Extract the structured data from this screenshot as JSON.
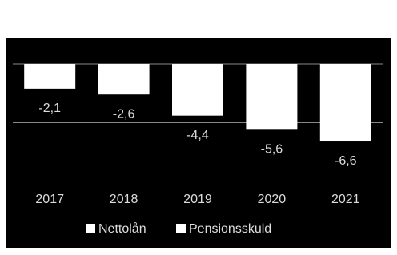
{
  "chart_data": {
    "type": "bar",
    "categories": [
      "2017",
      "2018",
      "2019",
      "2020",
      "2021"
    ],
    "series": [
      {
        "name": "Nettolån",
        "color": "#ffffff",
        "values": [
          -2.1,
          -2.6,
          -4.4,
          -5.6,
          -6.6
        ],
        "value_labels": [
          "-2,1",
          "-2,6",
          "-4,4",
          "-5,6",
          "-6,6"
        ]
      },
      {
        "name": "Pensionsskuld",
        "color": "#ffffff",
        "values": [
          null,
          null,
          null,
          null,
          null
        ]
      }
    ],
    "ylim": [
      -10,
      0
    ],
    "yticks": [
      0,
      -5
    ],
    "grid": true,
    "background": "#000000"
  }
}
